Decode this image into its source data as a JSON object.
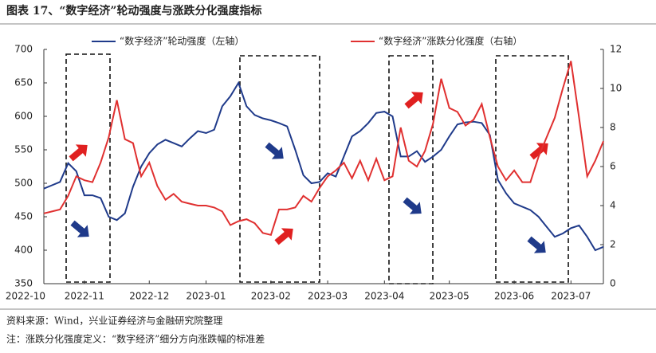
{
  "chart_data": {
    "type": "line",
    "title": "图表 17、“数字经济”轮动强度与涨跌分化强度指标",
    "source": "资料来源：Wind，兴业证券经济与金融研究院整理",
    "note": "注：涨跌分化强度定义：“数字经济”细分方向涨跌幅的标准差",
    "categories": [
      "2022-10",
      null,
      null,
      null,
      null,
      "2022-11",
      null,
      null,
      null,
      null,
      null,
      null,
      null,
      "2022-12",
      null,
      null,
      null,
      null,
      null,
      null,
      "2023-01",
      null,
      null,
      null,
      null,
      null,
      null,
      null,
      "2023-02",
      null,
      null,
      null,
      null,
      null,
      null,
      "2023-03",
      null,
      null,
      null,
      null,
      null,
      null,
      "2023-04",
      null,
      null,
      null,
      null,
      null,
      null,
      null,
      "2023-05",
      null,
      null,
      null,
      null,
      null,
      null,
      null,
      "2023-06",
      null,
      null,
      null,
      null,
      null,
      null,
      "2023-07",
      null,
      null,
      null,
      null
    ],
    "series": [
      {
        "name": "“数字经济”轮动强度（左轴）",
        "color": "#1f3a8a",
        "axis": "y",
        "values": [
          492,
          497,
          502,
          530,
          518,
          482,
          482,
          478,
          450,
          445,
          455,
          495,
          525,
          545,
          558,
          565,
          560,
          555,
          567,
          578,
          575,
          580,
          615,
          630,
          650,
          615,
          602,
          597,
          594,
          590,
          585,
          550,
          512,
          500,
          502,
          515,
          510,
          540,
          570,
          578,
          590,
          605,
          607,
          600,
          540,
          540,
          548,
          532,
          540,
          550,
          570,
          588,
          591,
          592,
          590,
          572,
          505,
          485,
          470,
          465,
          460,
          450,
          435,
          420,
          425,
          433,
          437,
          420,
          400,
          405
        ]
      },
      {
        "name": "“数字经济”涨跌分化强度（右轴）",
        "color": "#e03030",
        "axis": "y2",
        "values": [
          3.6,
          3.7,
          3.8,
          4.5,
          5.5,
          5.3,
          5.2,
          6.2,
          7.5,
          9.4,
          7.4,
          7.2,
          5.5,
          6.2,
          5.0,
          4.3,
          4.6,
          4.2,
          4.1,
          4.0,
          4.0,
          3.9,
          3.7,
          3.0,
          3.2,
          3.3,
          3.1,
          2.6,
          2.5,
          3.8,
          3.8,
          3.9,
          4.5,
          4.2,
          4.9,
          5.5,
          5.8,
          6.2,
          5.4,
          6.3,
          5.3,
          6.4,
          5.3,
          5.5,
          8.0,
          6.3,
          6.0,
          6.8,
          8.2,
          10.5,
          9.0,
          8.8,
          8.1,
          8.4,
          9.2,
          7.5,
          6.0,
          5.3,
          5.8,
          5.2,
          5.2,
          6.5,
          7.5,
          8.5,
          10.0,
          11.4,
          8.5,
          5.5,
          6.3,
          7.3
        ]
      }
    ],
    "ylim": [
      350,
      700
    ],
    "yticks": [
      350,
      400,
      450,
      500,
      550,
      600,
      650,
      700
    ],
    "y2lim": [
      0,
      12
    ],
    "y2ticks": [
      0,
      2,
      4,
      6,
      8,
      10,
      12
    ],
    "legend": "top"
  }
}
